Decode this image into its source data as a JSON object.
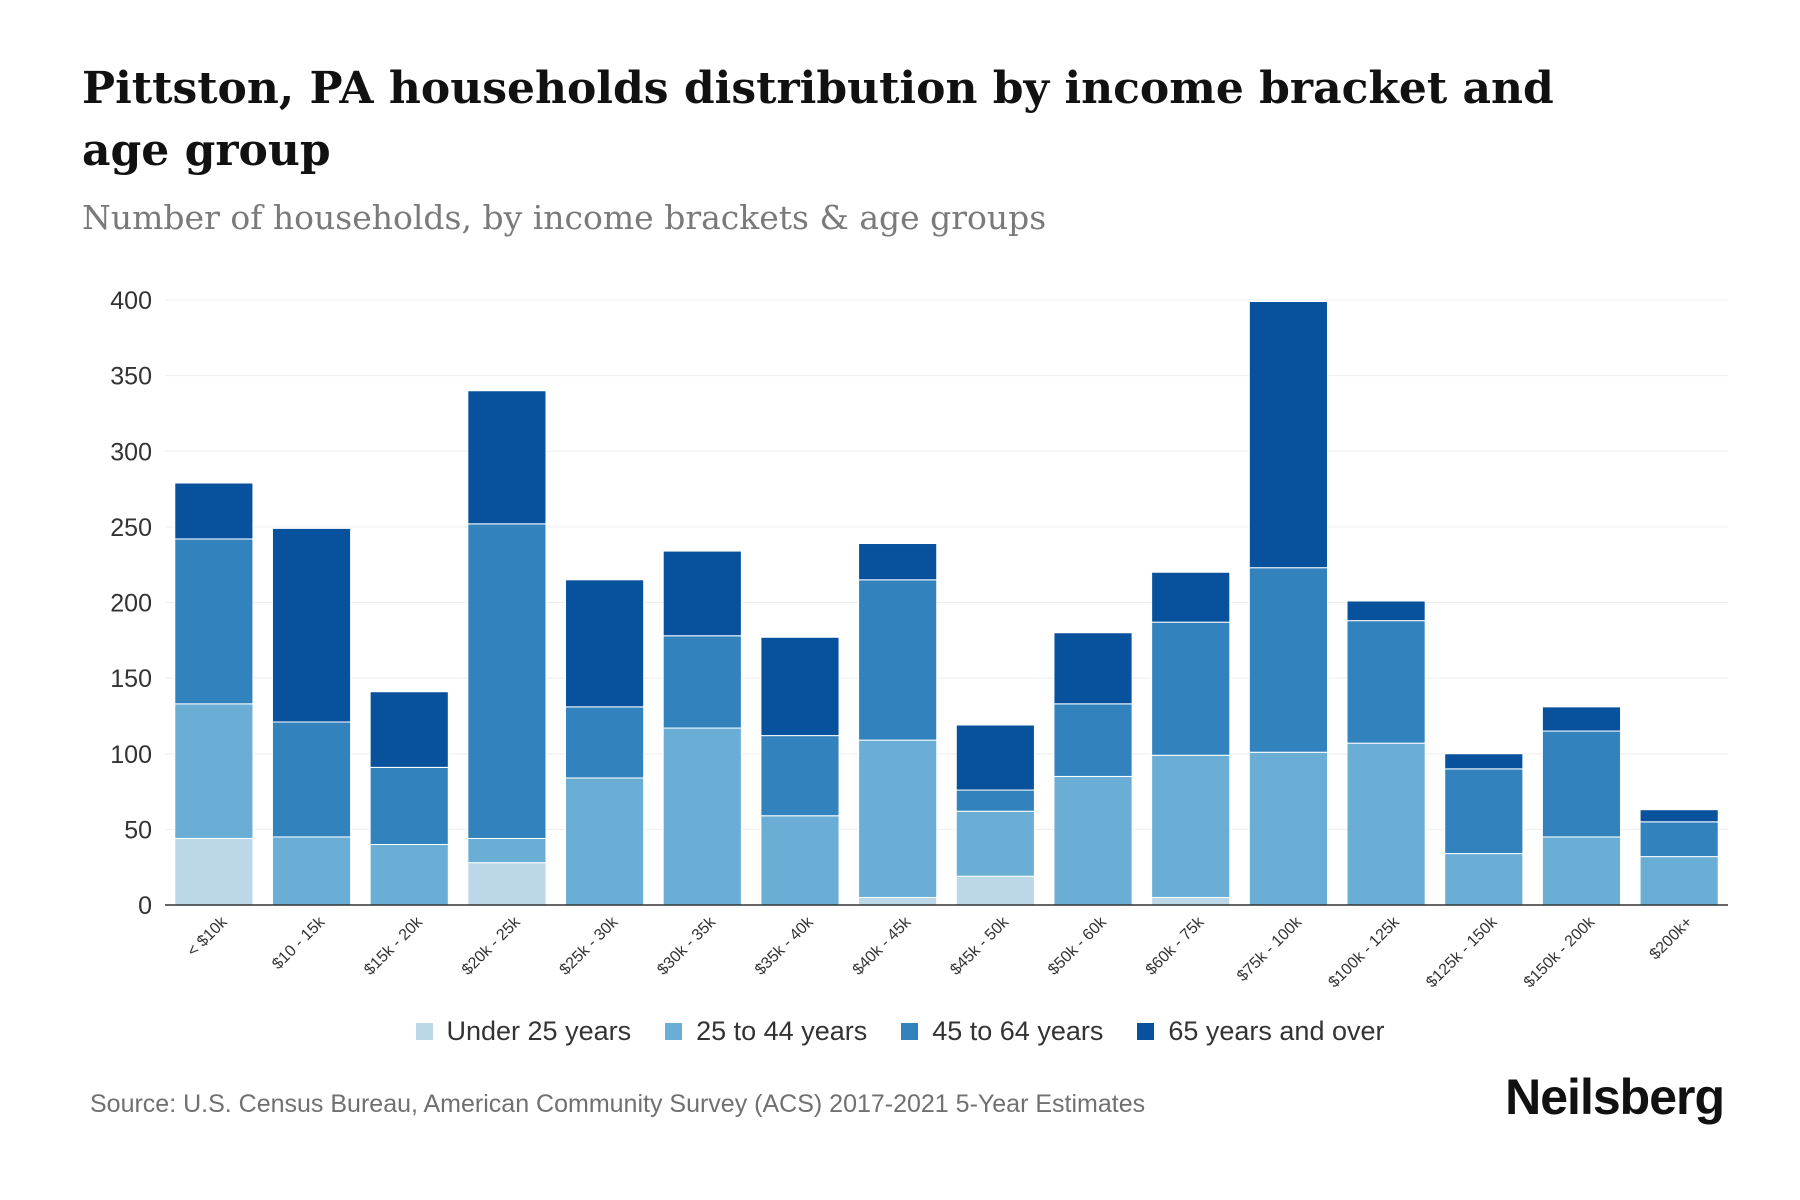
{
  "header": {
    "title": "Pittston, PA households distribution by income bracket and age group",
    "subtitle": "Number of households, by income brackets & age groups"
  },
  "footer": {
    "source": "Source: U.S. Census Bureau, American Community Survey (ACS) 2017-2021 5-Year Estimates",
    "brand": "Neilsberg"
  },
  "colors": {
    "under_25": "#bcd8e8",
    "age_25_44": "#6aaed6",
    "age_45_64": "#3282be",
    "age_65_over": "#08519c",
    "grid": "#eeeeee",
    "axis_text": "#333333"
  },
  "chart_data": {
    "type": "bar",
    "stacked": true,
    "title": "Pittston, PA households distribution by income bracket and age group",
    "subtitle": "Number of households, by income brackets & age groups",
    "xlabel": "",
    "ylabel": "",
    "ylim": [
      0,
      400
    ],
    "yticks": [
      0,
      50,
      100,
      150,
      200,
      250,
      300,
      350,
      400
    ],
    "grid": true,
    "legend_position": "bottom",
    "categories": [
      "< $10k",
      "$10 - 15k",
      "$15k - 20k",
      "$20k - 25k",
      "$25k - 30k",
      "$30k - 35k",
      "$35k - 40k",
      "$40k - 45k",
      "$45k - 50k",
      "$50k - 60k",
      "$60k - 75k",
      "$75k - 100k",
      "$100k - 125k",
      "$125k - 150k",
      "$150k - 200k",
      "$200k+"
    ],
    "series": [
      {
        "name": "Under 25 years",
        "values": [
          44,
          0,
          0,
          28,
          0,
          0,
          0,
          5,
          19,
          0,
          5,
          0,
          0,
          0,
          0,
          0
        ]
      },
      {
        "name": "25 to 44 years",
        "values": [
          89,
          45,
          40,
          16,
          84,
          117,
          59,
          104,
          43,
          85,
          94,
          101,
          107,
          34,
          45,
          32
        ]
      },
      {
        "name": "45 to 64 years",
        "values": [
          109,
          76,
          51,
          208,
          47,
          61,
          53,
          106,
          14,
          48,
          88,
          122,
          81,
          56,
          70,
          23
        ]
      },
      {
        "name": "65 years and over",
        "values": [
          37,
          128,
          50,
          88,
          84,
          56,
          65,
          24,
          43,
          47,
          33,
          176,
          13,
          10,
          16,
          8
        ]
      }
    ]
  }
}
